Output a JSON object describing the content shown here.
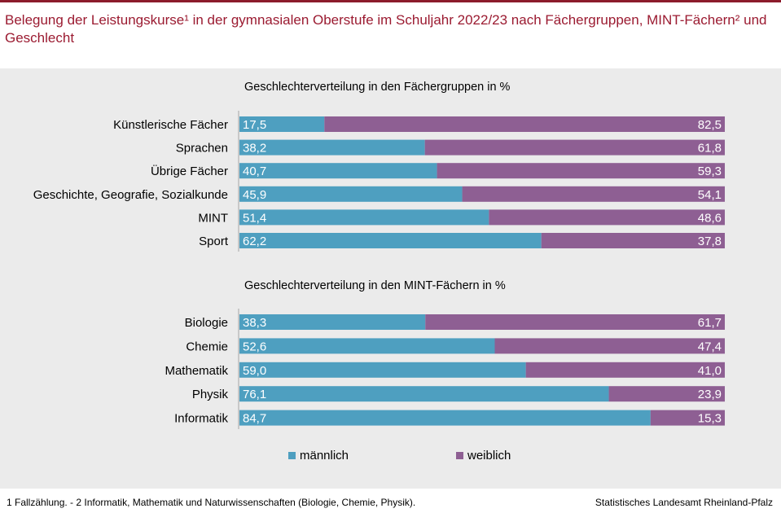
{
  "title": "Belegung der Leistungskurse¹ in der gymnasialen Oberstufe im Schuljahr 2022/23 nach Fächergruppen, MINT-Fächern² und Geschlecht",
  "colors": {
    "male": "#4e9fc0",
    "female": "#8e5f93",
    "title": "#9b1b31",
    "panel": "#ebebeb"
  },
  "legend": {
    "male": "männlich",
    "female": "weiblich"
  },
  "footnote": "1 Fallzählung. - 2 Informatik, Mathematik und Naturwissenschaften (Biologie, Chemie, Physik).",
  "source": "Statistisches Landesamt Rheinland-Pfalz",
  "chart_data": [
    {
      "type": "bar",
      "stacked": true,
      "orientation": "horizontal",
      "title": "Geschlechterverteilung  in den Fächergruppen  in %",
      "xlim": [
        0,
        100
      ],
      "grid": false,
      "legend_position": "bottom",
      "categories": [
        "Künstlerische Fächer",
        "Sprachen",
        "Übrige Fächer",
        "Geschichte, Geografie, Sozialkunde",
        "MINT",
        "Sport"
      ],
      "series": [
        {
          "name": "männlich",
          "values": [
            17.5,
            38.2,
            40.7,
            45.9,
            51.4,
            62.2
          ]
        },
        {
          "name": "weiblich",
          "values": [
            82.5,
            61.8,
            59.3,
            54.1,
            48.6,
            37.8
          ]
        }
      ]
    },
    {
      "type": "bar",
      "stacked": true,
      "orientation": "horizontal",
      "title": "Geschlechterverteilung  in den MINT-Fächern  in %",
      "xlim": [
        0,
        100
      ],
      "grid": false,
      "legend_position": "bottom",
      "categories": [
        "Biologie",
        "Chemie",
        "Mathematik",
        "Physik",
        "Informatik"
      ],
      "series": [
        {
          "name": "männlich",
          "values": [
            38.3,
            52.6,
            59.0,
            76.1,
            84.7
          ]
        },
        {
          "name": "weiblich",
          "values": [
            61.7,
            47.4,
            41.0,
            23.9,
            15.3
          ]
        }
      ]
    }
  ]
}
